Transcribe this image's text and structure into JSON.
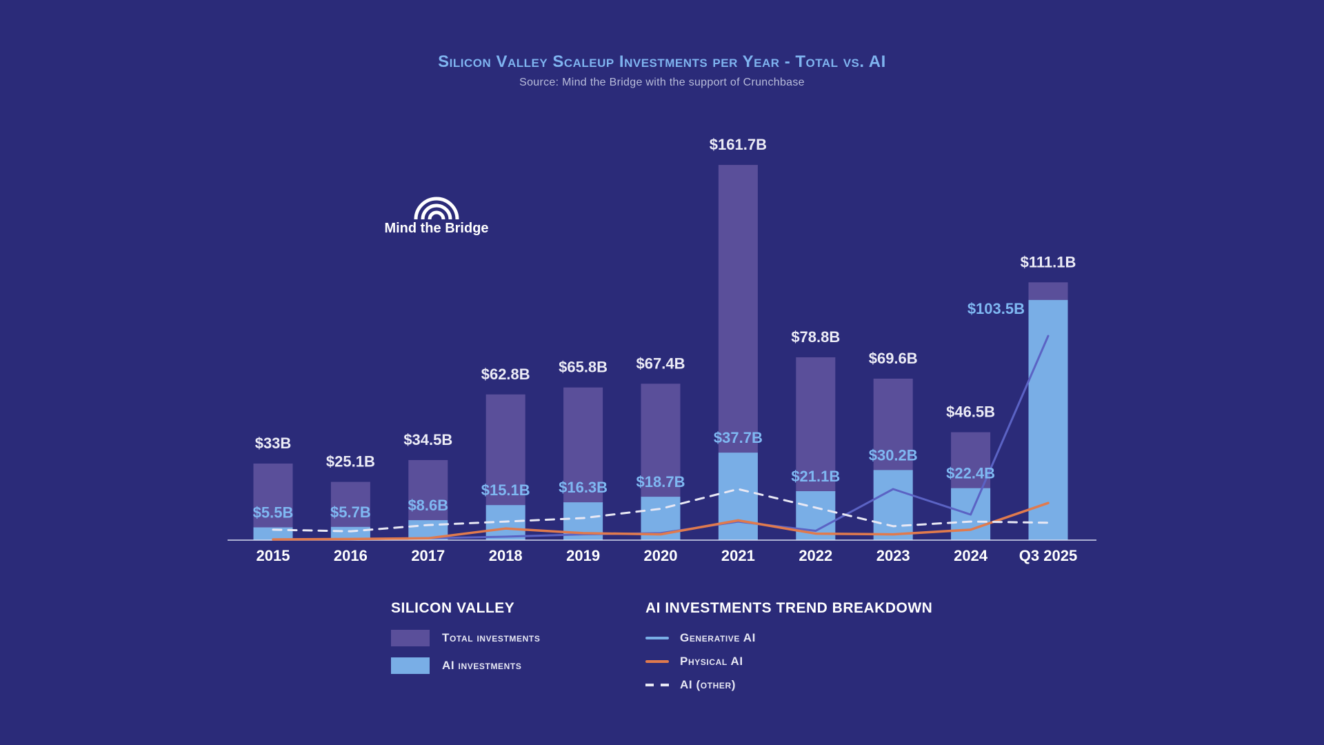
{
  "title": "Silicon Valley Scaleup Investments per Year - Total vs. AI",
  "subtitle": "Source: Mind the Bridge with the support of Crunchbase",
  "logo_text": "Mind the Bridge",
  "legend": {
    "left_heading": "SILICON VALLEY",
    "total_label": "Total investments",
    "ai_label": "AI investments",
    "right_heading": "AI INVESTMENTS TREND BREAKDOWN",
    "gen_label": "Generative AI",
    "phys_label": "Physical AI",
    "other_label": "AI (other)"
  },
  "colors": {
    "background": "#2b2b79",
    "total": "#5a4f9a",
    "ai": "#79aee6",
    "generative": "#5b63c4",
    "physical": "#e07a4d",
    "other": "#e8e8f4"
  },
  "chart_data": {
    "type": "bar",
    "categories": [
      "2015",
      "2016",
      "2017",
      "2018",
      "2019",
      "2020",
      "2021",
      "2022",
      "2023",
      "2024",
      "Q3 2025"
    ],
    "series": [
      {
        "name": "Total investments",
        "values": [
          33,
          25.1,
          34.5,
          62.8,
          65.8,
          67.4,
          161.7,
          78.8,
          69.6,
          46.5,
          111.1
        ],
        "labels": [
          "$33B",
          "$25.1B",
          "$34.5B",
          "$62.8B",
          "$65.8B",
          "$67.4B",
          "$161.7B",
          "$78.8B",
          "$69.6B",
          "$46.5B",
          "$111.1B"
        ]
      },
      {
        "name": "AI investments",
        "values": [
          5.5,
          5.7,
          8.6,
          15.1,
          16.3,
          18.7,
          37.7,
          21.1,
          30.2,
          22.4,
          103.5
        ],
        "labels": [
          "$5.5B",
          "$5.7B",
          "$8.6B",
          "$15.1B",
          "$16.3B",
          "$18.7B",
          "$37.7B",
          "$21.1B",
          "$30.2B",
          "$22.4B",
          "$103.5B"
        ]
      }
    ],
    "trend_lines": [
      {
        "name": "Generative AI",
        "style": "solid",
        "values": [
          0.3,
          0.4,
          0.8,
          1.5,
          2.5,
          3,
          8,
          4,
          22,
          11,
          88
        ]
      },
      {
        "name": "Physical AI",
        "style": "solid",
        "values": [
          0.3,
          0.5,
          0.8,
          5,
          3,
          2.5,
          8.5,
          2.8,
          2.5,
          4.5,
          16
        ]
      },
      {
        "name": "AI (other)",
        "style": "dashed",
        "values": [
          4.5,
          3.8,
          6.5,
          8,
          9.5,
          13.5,
          22,
          14,
          6,
          8,
          7.5
        ]
      }
    ],
    "ylim": [
      0,
      165
    ],
    "grid": false,
    "legend_position": "bottom"
  }
}
